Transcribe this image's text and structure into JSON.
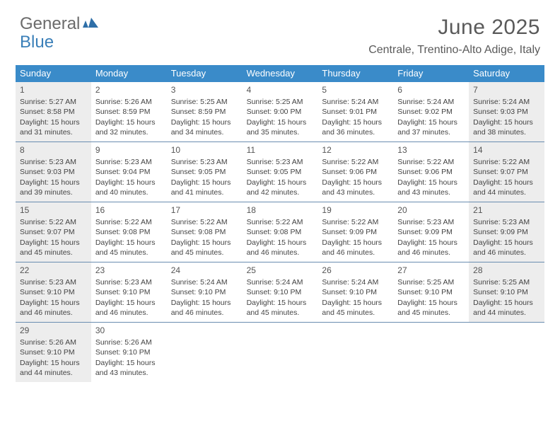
{
  "logo": {
    "word1": "General",
    "word2": "Blue"
  },
  "header": {
    "month_title": "June 2025",
    "location": "Centrale, Trentino-Alto Adige, Italy"
  },
  "colors": {
    "header_bg": "#3a8bc9",
    "header_text": "#ffffff",
    "week_divider": "#6a8db0",
    "faded_bg": "#ededed",
    "text": "#444444",
    "logo_gray": "#6b6b6b",
    "logo_blue": "#3a7fb8"
  },
  "day_names": [
    "Sunday",
    "Monday",
    "Tuesday",
    "Wednesday",
    "Thursday",
    "Friday",
    "Saturday"
  ],
  "weeks": [
    [
      {
        "n": "1",
        "faded": true,
        "sunrise": "Sunrise: 5:27 AM",
        "sunset": "Sunset: 8:58 PM",
        "day1": "Daylight: 15 hours",
        "day2": "and 31 minutes."
      },
      {
        "n": "2",
        "faded": false,
        "sunrise": "Sunrise: 5:26 AM",
        "sunset": "Sunset: 8:59 PM",
        "day1": "Daylight: 15 hours",
        "day2": "and 32 minutes."
      },
      {
        "n": "3",
        "faded": false,
        "sunrise": "Sunrise: 5:25 AM",
        "sunset": "Sunset: 8:59 PM",
        "day1": "Daylight: 15 hours",
        "day2": "and 34 minutes."
      },
      {
        "n": "4",
        "faded": false,
        "sunrise": "Sunrise: 5:25 AM",
        "sunset": "Sunset: 9:00 PM",
        "day1": "Daylight: 15 hours",
        "day2": "and 35 minutes."
      },
      {
        "n": "5",
        "faded": false,
        "sunrise": "Sunrise: 5:24 AM",
        "sunset": "Sunset: 9:01 PM",
        "day1": "Daylight: 15 hours",
        "day2": "and 36 minutes."
      },
      {
        "n": "6",
        "faded": false,
        "sunrise": "Sunrise: 5:24 AM",
        "sunset": "Sunset: 9:02 PM",
        "day1": "Daylight: 15 hours",
        "day2": "and 37 minutes."
      },
      {
        "n": "7",
        "faded": true,
        "sunrise": "Sunrise: 5:24 AM",
        "sunset": "Sunset: 9:03 PM",
        "day1": "Daylight: 15 hours",
        "day2": "and 38 minutes."
      }
    ],
    [
      {
        "n": "8",
        "faded": true,
        "sunrise": "Sunrise: 5:23 AM",
        "sunset": "Sunset: 9:03 PM",
        "day1": "Daylight: 15 hours",
        "day2": "and 39 minutes."
      },
      {
        "n": "9",
        "faded": false,
        "sunrise": "Sunrise: 5:23 AM",
        "sunset": "Sunset: 9:04 PM",
        "day1": "Daylight: 15 hours",
        "day2": "and 40 minutes."
      },
      {
        "n": "10",
        "faded": false,
        "sunrise": "Sunrise: 5:23 AM",
        "sunset": "Sunset: 9:05 PM",
        "day1": "Daylight: 15 hours",
        "day2": "and 41 minutes."
      },
      {
        "n": "11",
        "faded": false,
        "sunrise": "Sunrise: 5:23 AM",
        "sunset": "Sunset: 9:05 PM",
        "day1": "Daylight: 15 hours",
        "day2": "and 42 minutes."
      },
      {
        "n": "12",
        "faded": false,
        "sunrise": "Sunrise: 5:22 AM",
        "sunset": "Sunset: 9:06 PM",
        "day1": "Daylight: 15 hours",
        "day2": "and 43 minutes."
      },
      {
        "n": "13",
        "faded": false,
        "sunrise": "Sunrise: 5:22 AM",
        "sunset": "Sunset: 9:06 PM",
        "day1": "Daylight: 15 hours",
        "day2": "and 43 minutes."
      },
      {
        "n": "14",
        "faded": true,
        "sunrise": "Sunrise: 5:22 AM",
        "sunset": "Sunset: 9:07 PM",
        "day1": "Daylight: 15 hours",
        "day2": "and 44 minutes."
      }
    ],
    [
      {
        "n": "15",
        "faded": true,
        "sunrise": "Sunrise: 5:22 AM",
        "sunset": "Sunset: 9:07 PM",
        "day1": "Daylight: 15 hours",
        "day2": "and 45 minutes."
      },
      {
        "n": "16",
        "faded": false,
        "sunrise": "Sunrise: 5:22 AM",
        "sunset": "Sunset: 9:08 PM",
        "day1": "Daylight: 15 hours",
        "day2": "and 45 minutes."
      },
      {
        "n": "17",
        "faded": false,
        "sunrise": "Sunrise: 5:22 AM",
        "sunset": "Sunset: 9:08 PM",
        "day1": "Daylight: 15 hours",
        "day2": "and 45 minutes."
      },
      {
        "n": "18",
        "faded": false,
        "sunrise": "Sunrise: 5:22 AM",
        "sunset": "Sunset: 9:08 PM",
        "day1": "Daylight: 15 hours",
        "day2": "and 46 minutes."
      },
      {
        "n": "19",
        "faded": false,
        "sunrise": "Sunrise: 5:22 AM",
        "sunset": "Sunset: 9:09 PM",
        "day1": "Daylight: 15 hours",
        "day2": "and 46 minutes."
      },
      {
        "n": "20",
        "faded": false,
        "sunrise": "Sunrise: 5:23 AM",
        "sunset": "Sunset: 9:09 PM",
        "day1": "Daylight: 15 hours",
        "day2": "and 46 minutes."
      },
      {
        "n": "21",
        "faded": true,
        "sunrise": "Sunrise: 5:23 AM",
        "sunset": "Sunset: 9:09 PM",
        "day1": "Daylight: 15 hours",
        "day2": "and 46 minutes."
      }
    ],
    [
      {
        "n": "22",
        "faded": true,
        "sunrise": "Sunrise: 5:23 AM",
        "sunset": "Sunset: 9:10 PM",
        "day1": "Daylight: 15 hours",
        "day2": "and 46 minutes."
      },
      {
        "n": "23",
        "faded": false,
        "sunrise": "Sunrise: 5:23 AM",
        "sunset": "Sunset: 9:10 PM",
        "day1": "Daylight: 15 hours",
        "day2": "and 46 minutes."
      },
      {
        "n": "24",
        "faded": false,
        "sunrise": "Sunrise: 5:24 AM",
        "sunset": "Sunset: 9:10 PM",
        "day1": "Daylight: 15 hours",
        "day2": "and 46 minutes."
      },
      {
        "n": "25",
        "faded": false,
        "sunrise": "Sunrise: 5:24 AM",
        "sunset": "Sunset: 9:10 PM",
        "day1": "Daylight: 15 hours",
        "day2": "and 45 minutes."
      },
      {
        "n": "26",
        "faded": false,
        "sunrise": "Sunrise: 5:24 AM",
        "sunset": "Sunset: 9:10 PM",
        "day1": "Daylight: 15 hours",
        "day2": "and 45 minutes."
      },
      {
        "n": "27",
        "faded": false,
        "sunrise": "Sunrise: 5:25 AM",
        "sunset": "Sunset: 9:10 PM",
        "day1": "Daylight: 15 hours",
        "day2": "and 45 minutes."
      },
      {
        "n": "28",
        "faded": true,
        "sunrise": "Sunrise: 5:25 AM",
        "sunset": "Sunset: 9:10 PM",
        "day1": "Daylight: 15 hours",
        "day2": "and 44 minutes."
      }
    ],
    [
      {
        "n": "29",
        "faded": true,
        "sunrise": "Sunrise: 5:26 AM",
        "sunset": "Sunset: 9:10 PM",
        "day1": "Daylight: 15 hours",
        "day2": "and 44 minutes."
      },
      {
        "n": "30",
        "faded": false,
        "sunrise": "Sunrise: 5:26 AM",
        "sunset": "Sunset: 9:10 PM",
        "day1": "Daylight: 15 hours",
        "day2": "and 43 minutes."
      },
      {
        "empty": true
      },
      {
        "empty": true
      },
      {
        "empty": true
      },
      {
        "empty": true
      },
      {
        "empty": true
      }
    ]
  ]
}
